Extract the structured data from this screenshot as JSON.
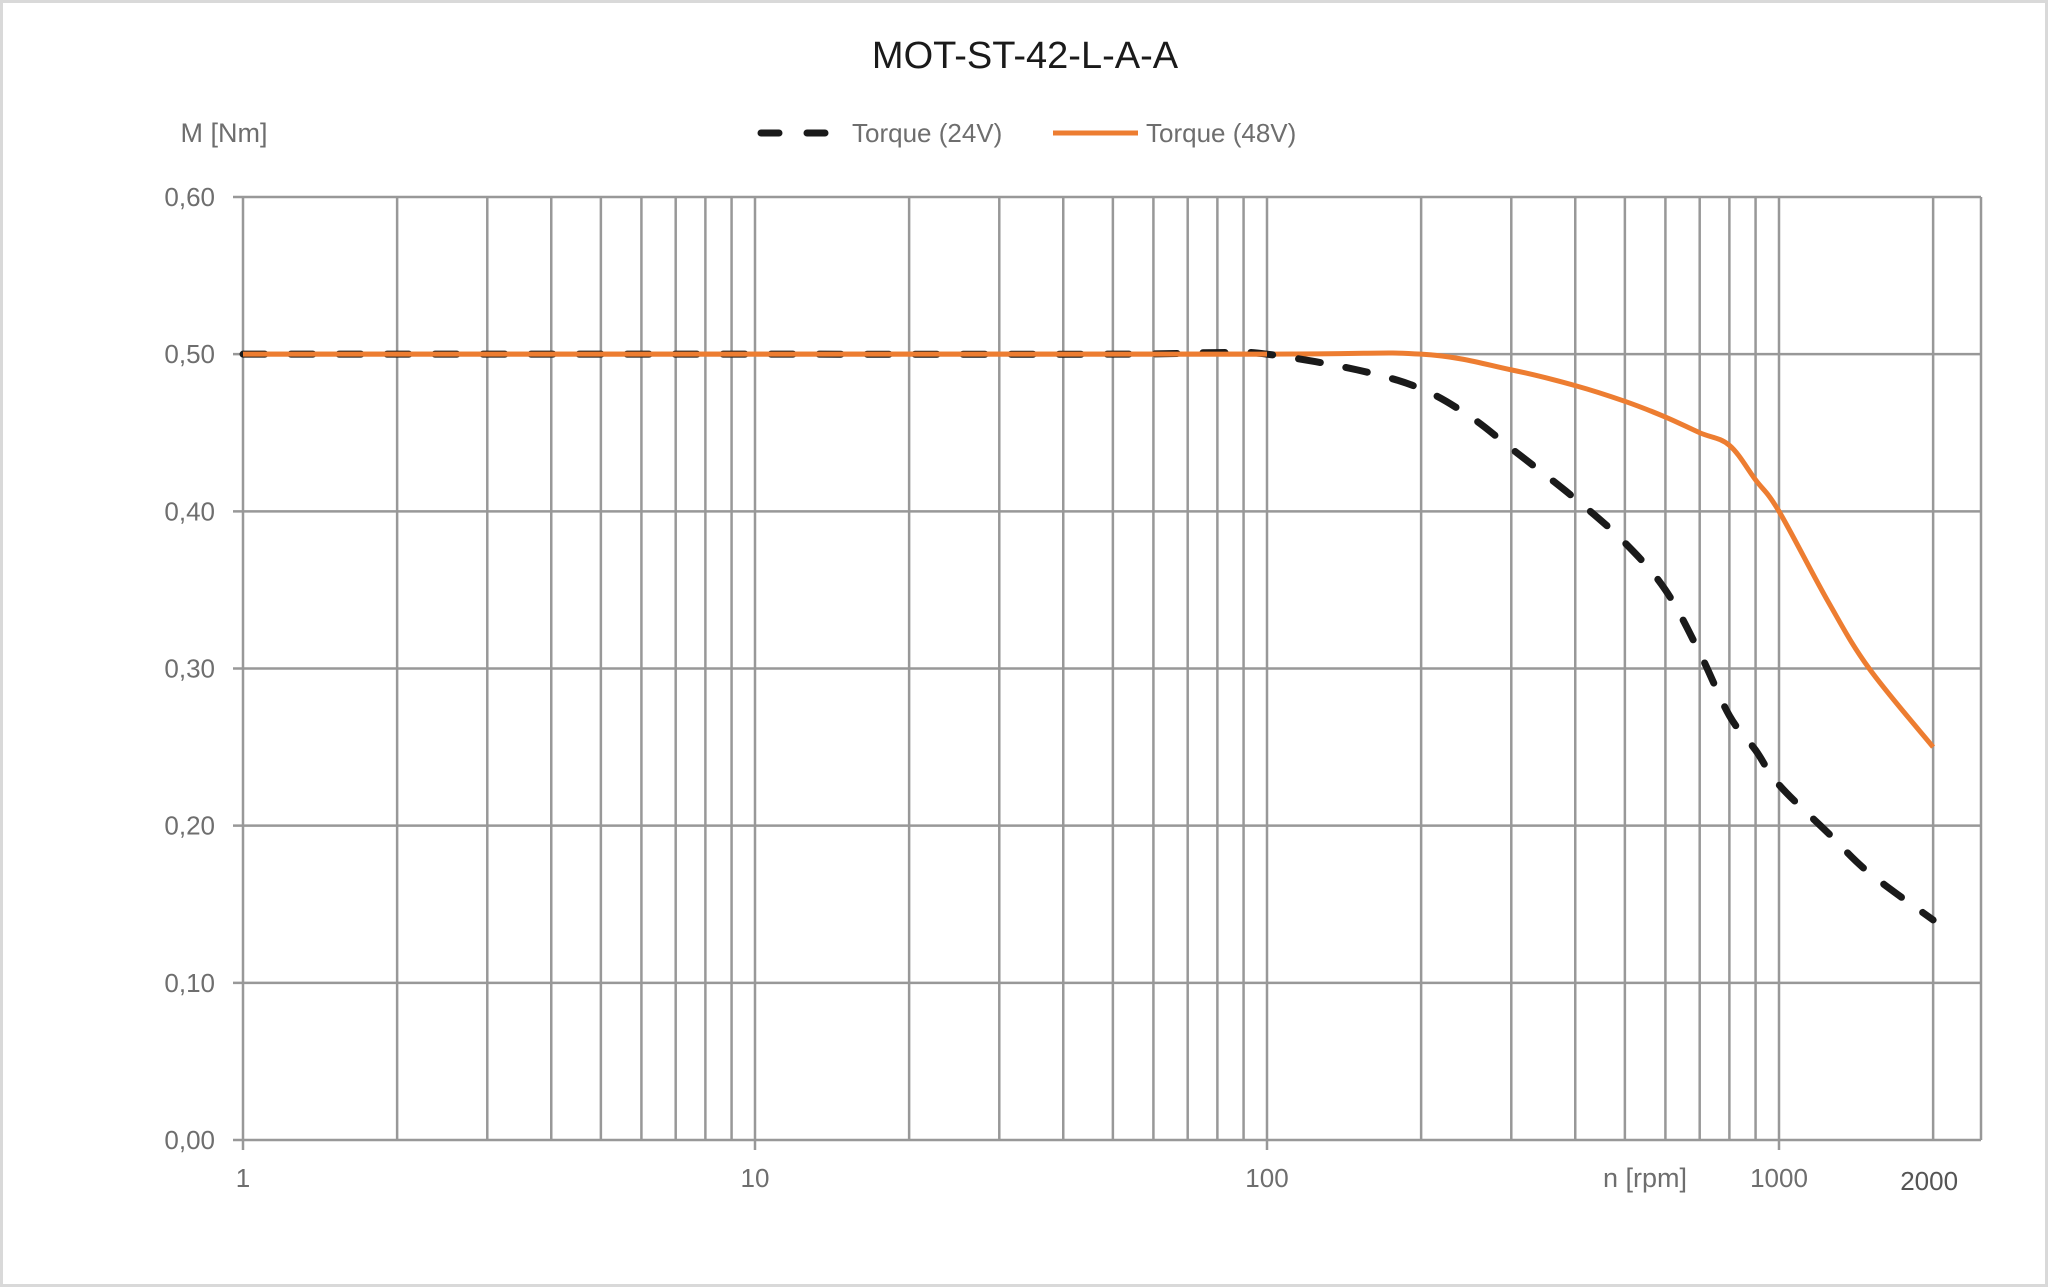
{
  "chart_data": {
    "type": "line",
    "title": "MOT-ST-42-L-A-A",
    "xlabel": "n [rpm]",
    "ylabel": "M [Nm]",
    "xscale": "log",
    "xlim": [
      1,
      2500
    ],
    "ylim": [
      0,
      0.6
    ],
    "grid": true,
    "legend_position": "top",
    "x_tick_labels": [
      "1",
      "10",
      "100",
      "1000",
      "2000"
    ],
    "y_tick_labels": [
      "0,00",
      "0,10",
      "0,20",
      "0,30",
      "0,40",
      "0,50",
      "0,60"
    ],
    "y_ticks": [
      0,
      0.1,
      0.2,
      0.3,
      0.4,
      0.5,
      0.6
    ],
    "x_grid_values": [
      1,
      2,
      3,
      4,
      5,
      6,
      7,
      8,
      9,
      10,
      20,
      30,
      40,
      50,
      60,
      70,
      80,
      90,
      100,
      200,
      300,
      400,
      500,
      600,
      700,
      800,
      900,
      1000,
      2000
    ],
    "series": [
      {
        "name": "Torque (24V)",
        "style": "dashed",
        "color": "#1a1a1a",
        "x": [
          1,
          10,
          50,
          80,
          100,
          150,
          200,
          250,
          300,
          400,
          500,
          600,
          700,
          800,
          900,
          1000,
          1250,
          1500,
          2000
        ],
        "values": [
          0.5,
          0.5,
          0.5,
          0.501,
          0.5,
          0.49,
          0.478,
          0.46,
          0.44,
          0.408,
          0.38,
          0.35,
          0.31,
          0.27,
          0.248,
          0.226,
          0.195,
          0.17,
          0.14
        ]
      },
      {
        "name": "Torque (48V)",
        "style": "solid",
        "color": "#ed7d31",
        "x": [
          1,
          10,
          100,
          200,
          300,
          400,
          500,
          600,
          700,
          800,
          900,
          1000,
          1250,
          1500,
          2000
        ],
        "values": [
          0.5,
          0.5,
          0.5,
          0.5,
          0.49,
          0.48,
          0.47,
          0.46,
          0.45,
          0.442,
          0.42,
          0.4,
          0.342,
          0.3,
          0.25
        ]
      }
    ]
  },
  "legend": {
    "items": [
      {
        "label": "Torque (24V)"
      },
      {
        "label": "Torque (48V)"
      }
    ]
  },
  "colors": {
    "grid": "#989898",
    "axis_text": "#6e6e6e",
    "title": "#1a1a1a",
    "series_24v": "#1a1a1a",
    "series_48v": "#ed7d31"
  }
}
